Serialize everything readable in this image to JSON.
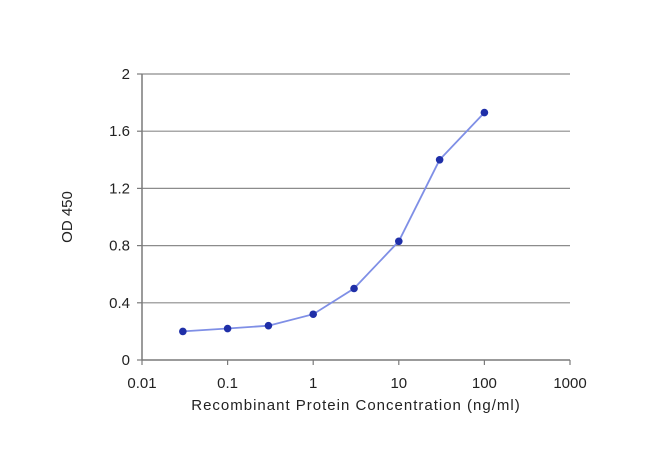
{
  "chart_data": {
    "type": "line",
    "title": "",
    "xlabel": "Recombinant Protein Concentration (ng/ml)",
    "ylabel": "OD 450",
    "x_scale": "log",
    "xlim": [
      0.01,
      1000
    ],
    "ylim": [
      0,
      2
    ],
    "x_ticks": [
      0.01,
      0.1,
      1,
      10,
      100,
      1000
    ],
    "x_tick_labels": [
      "0.01",
      "0.1",
      "1",
      "10",
      "100",
      "1000"
    ],
    "y_ticks": [
      0,
      0.4,
      0.8,
      1.2,
      1.6,
      2
    ],
    "y_tick_labels": [
      "0",
      "0.4",
      "0.8",
      "1.2",
      "1.6",
      "2"
    ],
    "grid": "horizontal",
    "legend": "none",
    "series": [
      {
        "x": [
          0.03,
          0.1,
          0.3,
          1,
          3,
          10,
          30,
          100
        ],
        "y": [
          0.2,
          0.22,
          0.24,
          0.32,
          0.5,
          0.83,
          1.4,
          1.73
        ]
      }
    ],
    "colors": {
      "line": "#7f8fe6",
      "marker": "#1f2fa8",
      "grid": "#8c8c8c",
      "axis": "#7a7a7a"
    }
  }
}
